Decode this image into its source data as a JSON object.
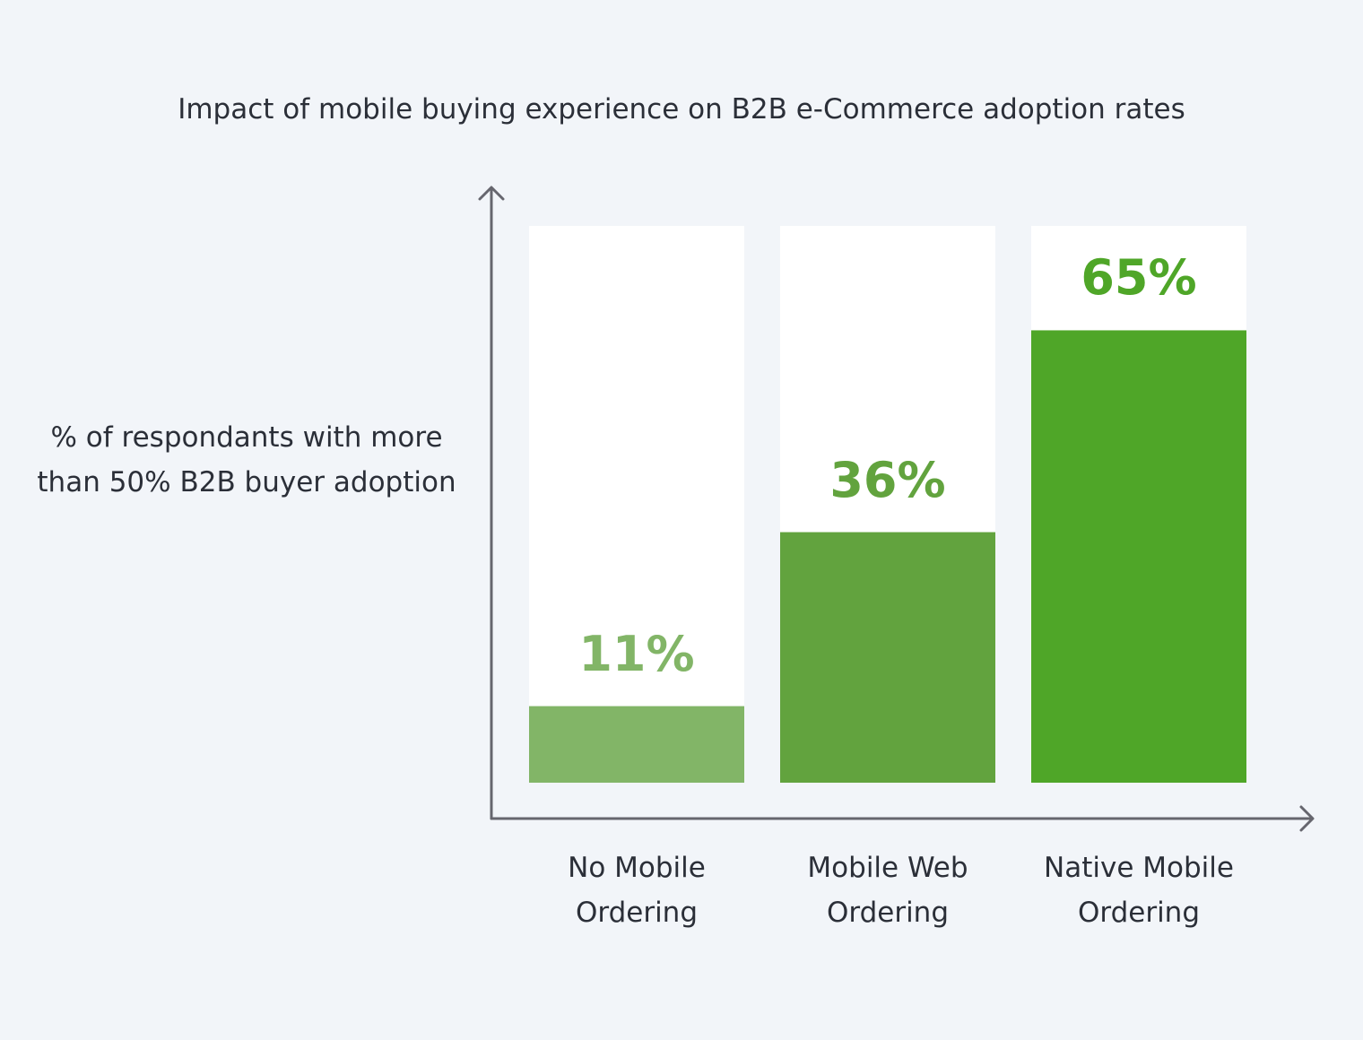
{
  "chart_data": {
    "type": "bar",
    "title": "Impact of mobile buying experience on B2B e-Commerce adoption rates",
    "y_label": "% of respondants with more than 50% B2B buyer adoption",
    "categories": [
      "No Mobile Ordering",
      "Mobile Web Ordering",
      "Native Mobile Ordering"
    ],
    "values": [
      11,
      36,
      65
    ],
    "value_labels": [
      "11%",
      "36%",
      "65%"
    ],
    "colors": [
      "#82b567",
      "#62a33e",
      "#4fa628"
    ],
    "ylim": [
      0,
      80
    ]
  }
}
